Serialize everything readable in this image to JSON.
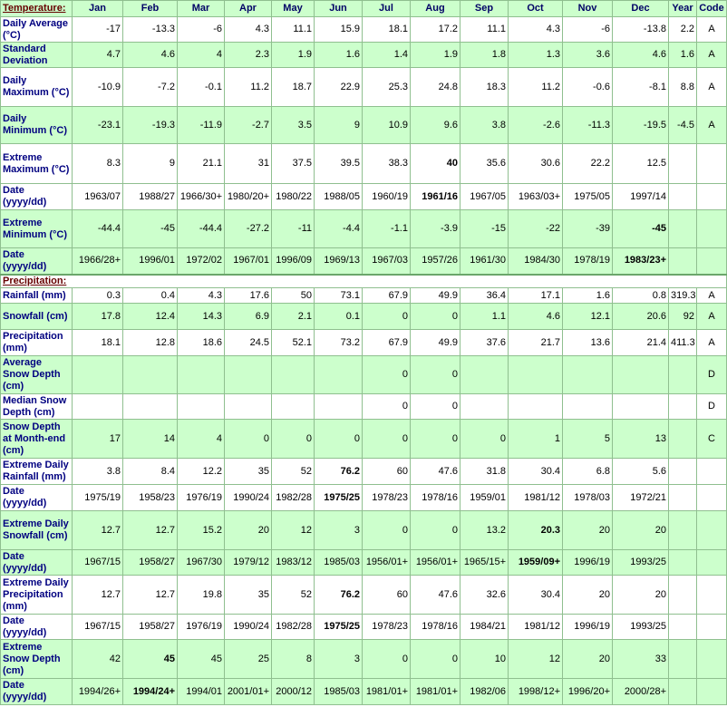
{
  "header": {
    "section": "Temperature:",
    "columns": [
      "Jan",
      "Feb",
      "Mar",
      "Apr",
      "May",
      "Jun",
      "Jul",
      "Aug",
      "Sep",
      "Oct",
      "Nov",
      "Dec",
      "Year",
      "Code"
    ]
  },
  "sections": [
    {
      "rows": [
        {
          "label": "Daily Average (°C)",
          "shaded": false,
          "values": [
            -17,
            -13.3,
            -6,
            4.3,
            11.1,
            15.9,
            18.1,
            17.2,
            11.1,
            4.3,
            -6,
            -13.8,
            2.2,
            "A"
          ]
        },
        {
          "label": "Standard Deviation",
          "shaded": true,
          "values": [
            4.7,
            4.6,
            4,
            2.3,
            1.9,
            1.6,
            1.4,
            1.9,
            1.8,
            1.3,
            3.6,
            4.6,
            1.6,
            "A"
          ]
        },
        {
          "label": "Daily Maximum (°C)",
          "shaded": false,
          "values": [
            -10.9,
            -7.2,
            -0.1,
            11.2,
            18.7,
            22.9,
            25.3,
            24.8,
            18.3,
            11.2,
            -0.6,
            -8.1,
            8.8,
            "A"
          ]
        },
        {
          "label": "Daily Minimum (°C)",
          "shaded": true,
          "values": [
            -23.1,
            -19.3,
            -11.9,
            -2.7,
            3.5,
            9,
            10.9,
            9.6,
            3.8,
            -2.6,
            -11.3,
            -19.5,
            -4.5,
            "A"
          ]
        },
        {
          "label": "Extreme Maximum (°C)",
          "shaded": false,
          "bold": [
            7
          ],
          "values": [
            8.3,
            9,
            21.1,
            31,
            37.5,
            39.5,
            38.3,
            40,
            35.6,
            30.6,
            22.2,
            12.5,
            null,
            null
          ]
        },
        {
          "label": "Date (yyyy/dd)",
          "shaded": false,
          "bold": [
            7
          ],
          "values": [
            "1963/07",
            "1988/27",
            "1966/30+",
            "1980/20+",
            "1980/22",
            "1988/05",
            "1960/19",
            "1961/16",
            "1967/05",
            "1963/03+",
            "1975/05",
            "1997/14",
            null,
            null
          ]
        },
        {
          "label": "Extreme Minimum (°C)",
          "shaded": true,
          "bold": [
            11
          ],
          "values": [
            -44.4,
            -45,
            -44.4,
            -27.2,
            -11,
            -4.4,
            -1.1,
            -3.9,
            -15,
            -22,
            -39,
            -45,
            null,
            null
          ]
        },
        {
          "label": "Date (yyyy/dd)",
          "shaded": true,
          "bold": [
            11
          ],
          "values": [
            "1966/28+",
            "1996/01",
            "1972/02",
            "1967/01",
            "1996/09",
            "1969/13",
            "1967/03",
            "1957/26",
            "1961/30",
            "1984/30",
            "1978/19",
            "1983/23+",
            null,
            null
          ]
        }
      ]
    },
    {
      "title": "Precipitation:",
      "rows": [
        {
          "label": "Rainfall (mm)",
          "shaded": false,
          "values": [
            0.3,
            0.4,
            4.3,
            17.6,
            50,
            73.1,
            67.9,
            49.9,
            36.4,
            17.1,
            1.6,
            0.8,
            319.3,
            "A"
          ]
        },
        {
          "label": "Snowfall (cm)",
          "shaded": true,
          "values": [
            17.8,
            12.4,
            14.3,
            6.9,
            2.1,
            0.1,
            0,
            0,
            1.1,
            4.6,
            12.1,
            20.6,
            92,
            "A"
          ]
        },
        {
          "label": "Precipitation (mm)",
          "shaded": false,
          "values": [
            18.1,
            12.8,
            18.6,
            24.5,
            52.1,
            73.2,
            67.9,
            49.9,
            37.6,
            21.7,
            13.6,
            21.4,
            411.3,
            "A"
          ]
        },
        {
          "label": "Average Snow Depth (cm)",
          "shaded": true,
          "values": [
            null,
            null,
            null,
            null,
            null,
            null,
            0,
            0,
            null,
            null,
            null,
            null,
            null,
            "D"
          ]
        },
        {
          "label": "Median Snow Depth (cm)",
          "shaded": false,
          "values": [
            null,
            null,
            null,
            null,
            null,
            null,
            0,
            0,
            null,
            null,
            null,
            null,
            null,
            "D"
          ]
        },
        {
          "label": "Snow Depth at Month-end (cm)",
          "shaded": true,
          "values": [
            17,
            14,
            4,
            0,
            0,
            0,
            0,
            0,
            0,
            1,
            5,
            13,
            null,
            "C"
          ]
        },
        {
          "label": "Extreme Daily Rainfall (mm)",
          "shaded": false,
          "bold": [
            5
          ],
          "values": [
            3.8,
            8.4,
            12.2,
            35,
            52,
            76.2,
            60,
            47.6,
            31.8,
            30.4,
            6.8,
            5.6,
            null,
            null
          ]
        },
        {
          "label": "Date (yyyy/dd)",
          "shaded": false,
          "bold": [
            5
          ],
          "values": [
            "1975/19",
            "1958/23",
            "1976/19",
            "1990/24",
            "1982/28",
            "1975/25",
            "1978/23",
            "1978/16",
            "1959/01",
            "1981/12",
            "1978/03",
            "1972/21",
            null,
            null
          ]
        },
        {
          "label": "Extreme Daily Snowfall (cm)",
          "shaded": true,
          "bold": [
            9
          ],
          "values": [
            12.7,
            12.7,
            15.2,
            20,
            12,
            3,
            0,
            0,
            13.2,
            20.3,
            20,
            20,
            null,
            null
          ]
        },
        {
          "label": "Date (yyyy/dd)",
          "shaded": true,
          "bold": [
            9
          ],
          "values": [
            "1967/15",
            "1958/27",
            "1967/30",
            "1979/12",
            "1983/12",
            "1985/03",
            "1956/01+",
            "1956/01+",
            "1965/15+",
            "1959/09+",
            "1996/19",
            "1993/25",
            null,
            null
          ]
        },
        {
          "label": "Extreme Daily Precipitation (mm)",
          "shaded": false,
          "bold": [
            5
          ],
          "values": [
            12.7,
            12.7,
            19.8,
            35,
            52,
            76.2,
            60,
            47.6,
            32.6,
            30.4,
            20,
            20,
            null,
            null
          ]
        },
        {
          "label": "Date (yyyy/dd)",
          "shaded": false,
          "bold": [
            5
          ],
          "values": [
            "1967/15",
            "1958/27",
            "1976/19",
            "1990/24",
            "1982/28",
            "1975/25",
            "1978/23",
            "1978/16",
            "1984/21",
            "1981/12",
            "1996/19",
            "1993/25",
            null,
            null
          ]
        },
        {
          "label": "Extreme Snow Depth (cm)",
          "shaded": true,
          "bold": [
            1
          ],
          "values": [
            42,
            45,
            45,
            25,
            8,
            3,
            0,
            0,
            10,
            12,
            20,
            33,
            null,
            null
          ]
        },
        {
          "label": "Date (yyyy/dd)",
          "shaded": true,
          "bold": [
            1
          ],
          "values": [
            "1994/26+",
            "1994/24+",
            "1994/01",
            "2001/01+",
            "2000/12",
            "1985/03",
            "1981/01+",
            "1981/01+",
            "1982/06",
            "1998/12+",
            "1996/20+",
            "2000/28+",
            null,
            null
          ]
        }
      ]
    }
  ]
}
